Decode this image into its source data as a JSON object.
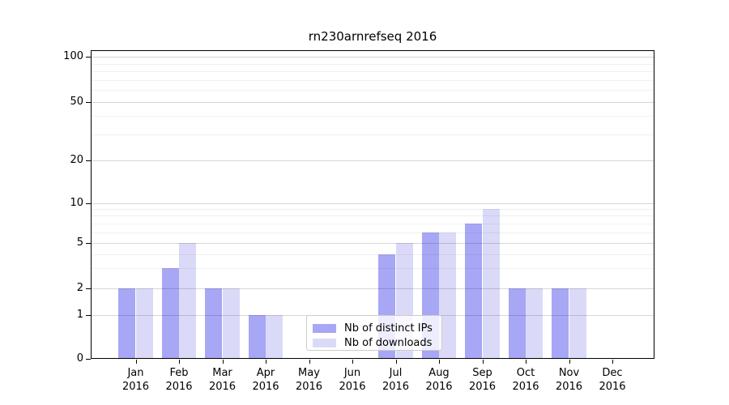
{
  "chart_data": {
    "type": "bar",
    "title": "rn230arnrefseq 2016",
    "categories": [
      "Jan",
      "Feb",
      "Mar",
      "Apr",
      "May",
      "Jun",
      "Jul",
      "Aug",
      "Sep",
      "Oct",
      "Nov",
      "Dec"
    ],
    "x_tick_year": "2016",
    "series": [
      {
        "name": "Nb of distinct IPs",
        "color": "#a7a7f5",
        "values": [
          2,
          3,
          2,
          1,
          0,
          0,
          4,
          6,
          7,
          2,
          2,
          0
        ]
      },
      {
        "name": "Nb of downloads",
        "color": "#dadaf8",
        "values": [
          2,
          5,
          2,
          1,
          0,
          0,
          5,
          6,
          9,
          2,
          2,
          0
        ]
      }
    ],
    "ylabel": "",
    "xlabel": "",
    "ylim": [
      0,
      100
    ],
    "y_major_ticks": [
      0,
      1,
      2,
      5,
      10,
      20,
      50,
      100
    ],
    "y_minor_gridlines": [
      3,
      4,
      6,
      7,
      8,
      9,
      30,
      40,
      60,
      70,
      80,
      90
    ],
    "scale": "log-like above 1, linear 0-1",
    "grid": "on",
    "legend_position": "lower center inside axes"
  },
  "colors": {
    "distinct_ips": "#a7a7f5",
    "downloads": "#dadaf8",
    "grid_major": "rgba(0,0,0,0.16)",
    "grid_minor": "rgba(0,0,0,0.06)",
    "spine": "#000000",
    "background": "#ffffff"
  }
}
